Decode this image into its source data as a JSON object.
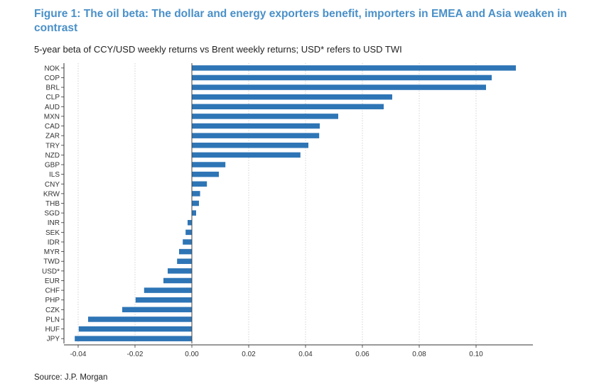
{
  "title": "Figure 1: The oil beta: The dollar and energy exporters benefit, importers in EMEA and Asia weaken in contrast",
  "subtitle": "5-year beta of CCY/USD weekly returns vs Brent weekly returns; USD* refers to USD TWI",
  "source": "Source: J.P. Morgan",
  "chart_data": {
    "type": "bar",
    "orientation": "horizontal",
    "title": "Figure 1: The oil beta: The dollar and energy exporters benefit, importers in EMEA and Asia weaken in contrast",
    "subtitle": "5-year beta of CCY/USD weekly returns vs Brent weekly returns; USD* refers to USD TWI",
    "xlabel": "",
    "ylabel": "",
    "xlim": [
      -0.045,
      0.12
    ],
    "xticks": [
      -0.04,
      -0.02,
      0.0,
      0.02,
      0.04,
      0.06,
      0.08,
      0.1
    ],
    "xtick_labels": [
      "-0.04",
      "-0.02",
      "0.00",
      "0.02",
      "0.04",
      "0.06",
      "0.08",
      "0.10"
    ],
    "grid": "vertical dotted",
    "bar_color": "#2e75b6",
    "categories": [
      "NOK",
      "COP",
      "BRL",
      "CLP",
      "AUD",
      "MXN",
      "CAD",
      "ZAR",
      "TRY",
      "NZD",
      "GBP",
      "ILS",
      "CNY",
      "KRW",
      "THB",
      "SGD",
      "INR",
      "SEK",
      "IDR",
      "MYR",
      "TWD",
      "USD*",
      "EUR",
      "CHF",
      "PHP",
      "CZK",
      "PLN",
      "HUF",
      "JPY"
    ],
    "values": [
      0.114,
      0.1055,
      0.1035,
      0.0705,
      0.0675,
      0.0515,
      0.045,
      0.0448,
      0.041,
      0.0382,
      0.0118,
      0.0095,
      0.0053,
      0.0029,
      0.0025,
      0.0015,
      -0.0015,
      -0.0022,
      -0.0032,
      -0.0045,
      -0.0052,
      -0.0085,
      -0.01,
      -0.0168,
      -0.0198,
      -0.0245,
      -0.0365,
      -0.0398,
      -0.0412
    ]
  }
}
